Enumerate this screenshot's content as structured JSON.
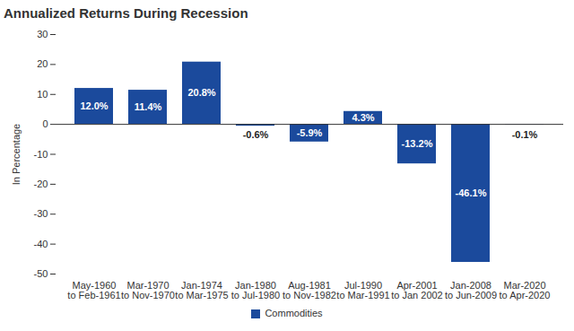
{
  "chart_data": {
    "type": "bar",
    "title": "Annualized Returns During Recession",
    "ylabel": "In Percentage",
    "categories": [
      "May-1960\nto Feb-1961",
      "Mar-1970\nto Nov-1970",
      "Jan-1974\nto Mar-1975",
      "Jan-1980\nto Jul-1980",
      "Aug-1981\nto Nov-1982",
      "Jul-1990\nto Mar-1991",
      "Apr-2001\nto Jan 2002",
      "Jan-2008\nto Jun-2009",
      "Mar-2020\nto Apr-2020"
    ],
    "series": [
      {
        "name": "Commodities",
        "color": "#1b4a9c",
        "values": [
          12.0,
          11.4,
          20.8,
          -0.6,
          -5.9,
          4.3,
          -13.2,
          -46.1,
          -0.1
        ],
        "value_labels": [
          "12.0%",
          "11.4%",
          "20.8%",
          "-0.6%",
          "-5.9%",
          "4.3%",
          "-13.2%",
          "-46.1%",
          "-0.1%"
        ]
      }
    ],
    "ylim": [
      -50,
      30
    ],
    "yticks": [
      -50,
      -40,
      -30,
      -20,
      -10,
      0,
      10,
      20,
      30
    ],
    "grid": false,
    "data_labels": true,
    "legend": "bottom"
  }
}
